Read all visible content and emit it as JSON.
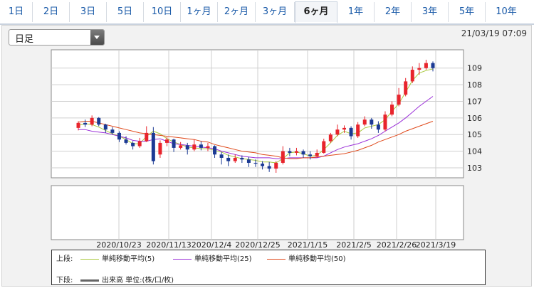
{
  "tabs": [
    {
      "label": "1日",
      "active": false
    },
    {
      "label": "2日",
      "active": false
    },
    {
      "label": "3日",
      "active": false
    },
    {
      "label": "5日",
      "active": false
    },
    {
      "label": "10日",
      "active": false
    },
    {
      "label": "1ヶ月",
      "active": false
    },
    {
      "label": "2ヶ月",
      "active": false
    },
    {
      "label": "3ヶ月",
      "active": false
    },
    {
      "label": "6ヶ月",
      "active": true
    },
    {
      "label": "1年",
      "active": false
    },
    {
      "label": "2年",
      "active": false
    },
    {
      "label": "3年",
      "active": false
    },
    {
      "label": "5年",
      "active": false
    },
    {
      "label": "10年",
      "active": false
    }
  ],
  "dropdown": {
    "value": "日足"
  },
  "timestamp": "21/03/19 07:09",
  "legend": {
    "upper_label": "上段:",
    "lower_label": "下段:",
    "ma5": "単純移動平均(5)",
    "ma25": "単純移動平均(25)",
    "ma50": "単純移動平均(50)",
    "volume": "出来高 単位:(株/口/枚)"
  },
  "colors": {
    "up": "#e8242c",
    "down": "#1b3a94",
    "ma5": "#a8c83c",
    "ma25": "#9b30d8",
    "ma50": "#e04a1c"
  },
  "chart_data": {
    "type": "candlestick",
    "yticks": [
      103,
      104,
      105,
      106,
      107,
      108,
      109
    ],
    "ylim": [
      102.4,
      110.1
    ],
    "x_labels": [
      "2020/10/23",
      "2020/11/13",
      "2020/12/4",
      "2020/12/25",
      "2021/1/15",
      "2021/2/5",
      "2021/2/26",
      "2021/3/19"
    ],
    "series": [
      {
        "name": "単純移動平均(5)",
        "color": "#a8c83c",
        "values": [
          105.55,
          105.65,
          105.6,
          105.45,
          105.25,
          105.05,
          104.9,
          104.7,
          104.45,
          104.45,
          104.9,
          105.2,
          105.05,
          104.75,
          104.55,
          104.4,
          104.25,
          104.2,
          104.15,
          104.15,
          104.05,
          103.95,
          103.75,
          103.65,
          103.55,
          103.5,
          103.45,
          103.35,
          103.35,
          103.3,
          103.55,
          103.9,
          103.95,
          103.85,
          103.7,
          103.75,
          104.1,
          104.5,
          104.95,
          105.2,
          105.05,
          105.1,
          105.4,
          105.5,
          105.6,
          105.9,
          106.4,
          106.85,
          107.55,
          108.25,
          108.7,
          108.85,
          108.95
        ]
      },
      {
        "name": "単純移動平均(25)",
        "color": "#9b30d8",
        "values": [
          105.3,
          105.3,
          105.2,
          105.15,
          105.1,
          105.0,
          104.9,
          104.8,
          104.65,
          104.6,
          104.6,
          104.7,
          104.75,
          104.6,
          104.45,
          104.4,
          104.35,
          104.3,
          104.25,
          104.2,
          104.15,
          104.0,
          103.9,
          103.8,
          103.7,
          103.65,
          103.6,
          103.6,
          103.6,
          103.55,
          103.55,
          103.6,
          103.6,
          103.6,
          103.6,
          103.6,
          103.7,
          103.9,
          104.1,
          104.25,
          104.35,
          104.45,
          104.6,
          104.75,
          104.95,
          105.2,
          105.45,
          105.7,
          106.0,
          106.35,
          106.7,
          107.0,
          107.3
        ]
      },
      {
        "name": "単純移動平均(50)",
        "color": "#e04a1c",
        "values": [
          105.75,
          105.8,
          105.8,
          105.7,
          105.6,
          105.5,
          105.4,
          105.3,
          105.2,
          105.1,
          105.05,
          105.0,
          104.95,
          104.9,
          104.85,
          104.8,
          104.75,
          104.7,
          104.6,
          104.55,
          104.4,
          104.3,
          104.2,
          104.1,
          104.0,
          103.95,
          103.9,
          103.8,
          103.75,
          103.7,
          103.6,
          103.55,
          103.55,
          103.6,
          103.6,
          103.65,
          103.7,
          103.75,
          103.8,
          103.85,
          103.95,
          104.05,
          104.2,
          104.35,
          104.55,
          104.7,
          104.85,
          105.0,
          105.2,
          105.35,
          105.5,
          105.65,
          105.8
        ]
      }
    ],
    "candles": [
      [
        105.4,
        105.7,
        105.8,
        105.25
      ],
      [
        105.7,
        105.6,
        105.9,
        105.45
      ],
      [
        105.6,
        106.0,
        106.15,
        105.5
      ],
      [
        106.0,
        105.6,
        106.05,
        105.5
      ],
      [
        105.6,
        105.3,
        105.65,
        105.1
      ],
      [
        105.3,
        105.1,
        105.45,
        105.0
      ],
      [
        105.1,
        104.7,
        105.2,
        104.55
      ],
      [
        104.7,
        104.5,
        104.9,
        104.4
      ],
      [
        104.5,
        104.3,
        104.6,
        104.1
      ],
      [
        104.3,
        104.6,
        104.8,
        104.2
      ],
      [
        104.6,
        105.1,
        105.5,
        104.55
      ],
      [
        105.1,
        103.4,
        105.45,
        103.2
      ],
      [
        103.8,
        104.5,
        104.65,
        103.6
      ],
      [
        104.5,
        104.7,
        104.85,
        104.3
      ],
      [
        104.7,
        104.2,
        104.75,
        103.95
      ],
      [
        104.2,
        104.35,
        104.55,
        104.1
      ],
      [
        104.35,
        104.1,
        104.5,
        103.8
      ],
      [
        104.1,
        104.4,
        104.7,
        104.0
      ],
      [
        104.4,
        104.2,
        104.6,
        104.05
      ],
      [
        104.2,
        104.3,
        104.5,
        104.0
      ],
      [
        104.3,
        103.8,
        104.35,
        103.6
      ],
      [
        103.8,
        103.6,
        103.95,
        103.2
      ],
      [
        103.6,
        103.4,
        103.8,
        103.1
      ],
      [
        103.4,
        103.6,
        103.8,
        103.3
      ],
      [
        103.6,
        103.5,
        103.75,
        103.3
      ],
      [
        103.5,
        103.3,
        103.65,
        103.05
      ],
      [
        103.3,
        103.25,
        103.5,
        103.05
      ],
      [
        103.25,
        103.1,
        103.4,
        102.9
      ],
      [
        103.1,
        102.95,
        103.35,
        102.75
      ],
      [
        102.95,
        103.3,
        103.4,
        102.7
      ],
      [
        103.3,
        104.0,
        104.3,
        103.2
      ],
      [
        104.0,
        103.9,
        104.2,
        103.7
      ],
      [
        103.9,
        104.0,
        104.2,
        103.75
      ],
      [
        104.0,
        103.8,
        104.1,
        103.6
      ],
      [
        103.8,
        103.7,
        104.0,
        103.5
      ],
      [
        103.7,
        103.9,
        104.1,
        103.6
      ],
      [
        103.9,
        104.6,
        104.75,
        103.85
      ],
      [
        104.6,
        105.0,
        105.1,
        104.5
      ],
      [
        105.0,
        105.3,
        105.6,
        104.9
      ],
      [
        105.3,
        105.4,
        105.55,
        105.1
      ],
      [
        105.4,
        104.9,
        105.5,
        104.7
      ],
      [
        104.9,
        105.6,
        105.75,
        104.8
      ],
      [
        105.6,
        105.9,
        106.1,
        105.5
      ],
      [
        105.9,
        105.6,
        106.0,
        105.35
      ],
      [
        105.6,
        105.3,
        105.8,
        105.1
      ],
      [
        105.3,
        106.2,
        106.4,
        105.2
      ],
      [
        106.2,
        106.8,
        107.0,
        106.1
      ],
      [
        106.8,
        107.4,
        107.8,
        106.7
      ],
      [
        107.4,
        108.2,
        108.4,
        107.3
      ],
      [
        108.2,
        108.9,
        109.1,
        108.1
      ],
      [
        108.9,
        109.0,
        109.3,
        108.6
      ],
      [
        109.0,
        109.3,
        109.5,
        108.9
      ],
      [
        109.3,
        109.0,
        109.4,
        108.8
      ]
    ]
  }
}
